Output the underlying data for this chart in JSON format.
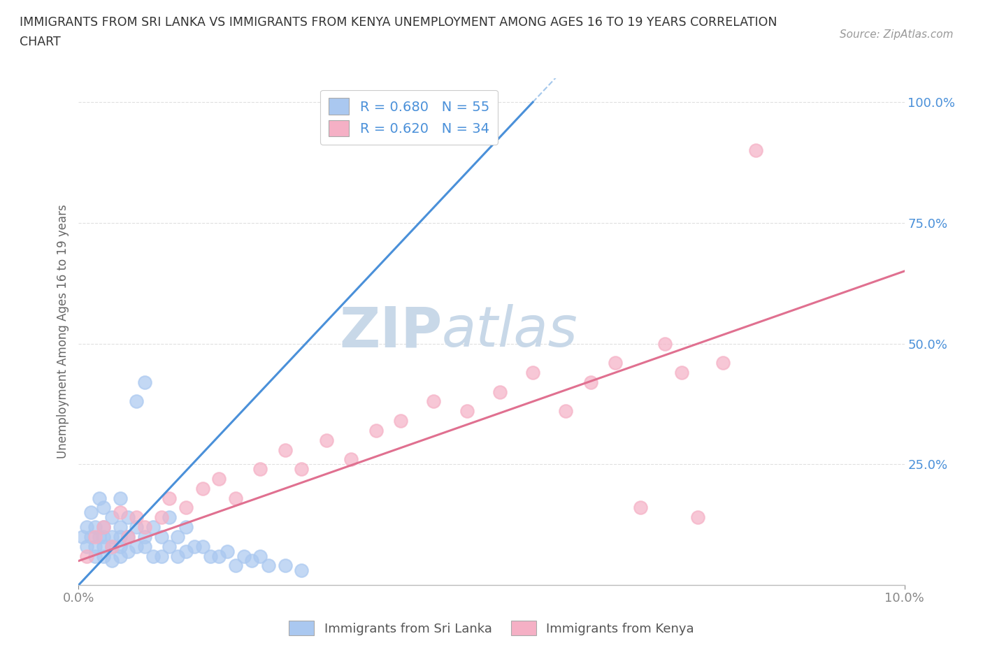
{
  "title_line1": "IMMIGRANTS FROM SRI LANKA VS IMMIGRANTS FROM KENYA UNEMPLOYMENT AMONG AGES 16 TO 19 YEARS CORRELATION",
  "title_line2": "CHART",
  "source": "Source: ZipAtlas.com",
  "ylabel": "Unemployment Among Ages 16 to 19 years",
  "xlim": [
    0.0,
    0.1
  ],
  "ylim": [
    0.0,
    1.05
  ],
  "x_tick_labels": [
    "0.0%",
    "10.0%"
  ],
  "y_tick_labels": [
    "100.0%",
    "75.0%",
    "50.0%",
    "25.0%"
  ],
  "y_tick_values": [
    1.0,
    0.75,
    0.5,
    0.25
  ],
  "sri_lanka_color": "#aac8f0",
  "kenya_color": "#f5b0c5",
  "sri_lanka_line_color": "#4a90d9",
  "kenya_line_color": "#e07090",
  "sri_lanka_R": 0.68,
  "sri_lanka_N": 55,
  "kenya_R": 0.62,
  "kenya_N": 34,
  "background_color": "#ffffff",
  "grid_color": "#e0e0e0",
  "watermark_zip": "ZIP",
  "watermark_atlas": "atlas",
  "watermark_color": "#c8d8e8",
  "legend_label_color": "#4a90d9",
  "sri_lanka_x": [
    0.0005,
    0.001,
    0.001,
    0.0015,
    0.0015,
    0.002,
    0.002,
    0.002,
    0.0025,
    0.0025,
    0.003,
    0.003,
    0.003,
    0.003,
    0.003,
    0.004,
    0.004,
    0.004,
    0.004,
    0.005,
    0.005,
    0.005,
    0.005,
    0.005,
    0.006,
    0.006,
    0.006,
    0.007,
    0.007,
    0.007,
    0.008,
    0.008,
    0.008,
    0.009,
    0.009,
    0.01,
    0.01,
    0.011,
    0.011,
    0.012,
    0.012,
    0.013,
    0.013,
    0.014,
    0.015,
    0.016,
    0.017,
    0.018,
    0.019,
    0.02,
    0.021,
    0.022,
    0.023,
    0.025,
    0.027
  ],
  "sri_lanka_y": [
    0.1,
    0.08,
    0.12,
    0.1,
    0.15,
    0.06,
    0.08,
    0.12,
    0.1,
    0.18,
    0.06,
    0.08,
    0.1,
    0.12,
    0.16,
    0.05,
    0.08,
    0.1,
    0.14,
    0.06,
    0.08,
    0.1,
    0.12,
    0.18,
    0.07,
    0.1,
    0.14,
    0.08,
    0.12,
    0.38,
    0.08,
    0.1,
    0.42,
    0.06,
    0.12,
    0.06,
    0.1,
    0.08,
    0.14,
    0.06,
    0.1,
    0.07,
    0.12,
    0.08,
    0.08,
    0.06,
    0.06,
    0.07,
    0.04,
    0.06,
    0.05,
    0.06,
    0.04,
    0.04,
    0.03
  ],
  "kenya_x": [
    0.001,
    0.002,
    0.003,
    0.004,
    0.005,
    0.006,
    0.007,
    0.008,
    0.01,
    0.011,
    0.013,
    0.015,
    0.017,
    0.019,
    0.022,
    0.025,
    0.027,
    0.03,
    0.033,
    0.036,
    0.039,
    0.043,
    0.047,
    0.051,
    0.055,
    0.059,
    0.062,
    0.065,
    0.068,
    0.071,
    0.073,
    0.075,
    0.078,
    0.082
  ],
  "kenya_y": [
    0.06,
    0.1,
    0.12,
    0.08,
    0.15,
    0.1,
    0.14,
    0.12,
    0.14,
    0.18,
    0.16,
    0.2,
    0.22,
    0.18,
    0.24,
    0.28,
    0.24,
    0.3,
    0.26,
    0.32,
    0.34,
    0.38,
    0.36,
    0.4,
    0.44,
    0.36,
    0.42,
    0.46,
    0.16,
    0.5,
    0.44,
    0.14,
    0.46,
    0.9
  ],
  "sl_trend_x0": 0.0,
  "sl_trend_y0": 0.0,
  "sl_trend_x1": 0.055,
  "sl_trend_y1": 1.0,
  "ke_trend_x0": 0.0,
  "ke_trend_y0": 0.05,
  "ke_trend_x1": 0.1,
  "ke_trend_y1": 0.65
}
